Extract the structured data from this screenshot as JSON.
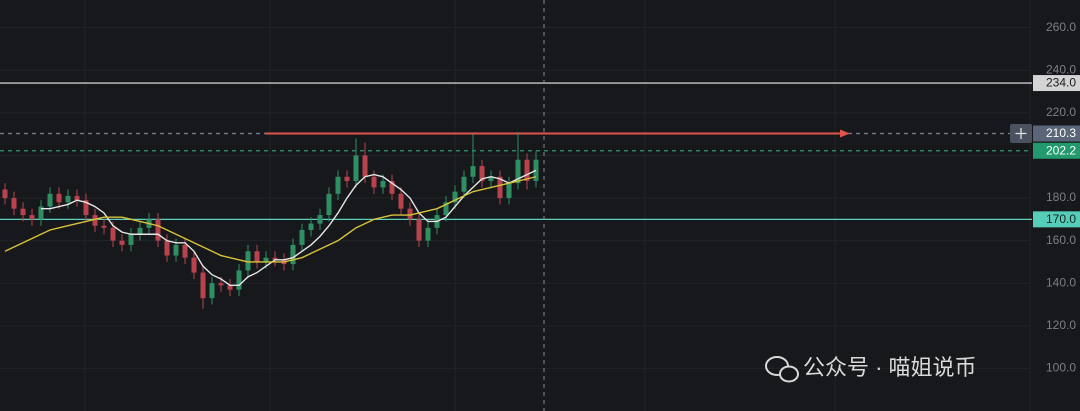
{
  "chart_data": {
    "type": "candlestick",
    "up_color": "#2f8f62",
    "down_color": "#b8434c",
    "open": [
      184,
      180,
      175,
      172,
      170,
      176,
      182,
      178,
      181,
      179,
      172,
      167,
      166,
      160,
      158,
      163,
      166,
      170,
      160,
      153,
      158,
      152,
      145,
      133,
      140,
      139,
      137,
      146,
      155,
      150,
      152,
      151,
      149,
      158,
      165,
      168,
      172,
      182,
      190,
      188,
      200,
      190,
      185,
      188,
      182,
      175,
      170,
      160,
      166,
      172,
      178,
      183,
      190,
      195,
      188,
      190,
      180,
      187,
      198,
      188
    ],
    "high": [
      187,
      183,
      178,
      175,
      179,
      185,
      185,
      184,
      184,
      182,
      175,
      170,
      169,
      163,
      166,
      169,
      173,
      173,
      163,
      161,
      161,
      155,
      148,
      143,
      143,
      142,
      149,
      158,
      158,
      155,
      155,
      154,
      161,
      168,
      171,
      175,
      185,
      193,
      193,
      208,
      206,
      193,
      191,
      191,
      185,
      178,
      173,
      169,
      175,
      181,
      186,
      193,
      210,
      198,
      193,
      193,
      190,
      211,
      201,
      202
    ],
    "low": [
      177,
      172,
      169,
      167,
      167,
      173,
      175,
      175,
      176,
      169,
      164,
      163,
      157,
      155,
      155,
      160,
      163,
      157,
      150,
      150,
      149,
      142,
      128,
      130,
      136,
      134,
      134,
      143,
      147,
      147,
      148,
      146,
      146,
      155,
      162,
      165,
      169,
      179,
      185,
      185,
      187,
      182,
      182,
      179,
      172,
      167,
      157,
      157,
      163,
      169,
      175,
      180,
      187,
      185,
      185,
      177,
      177,
      184,
      184,
      185
    ],
    "close": [
      180,
      175,
      172,
      170,
      176,
      182,
      178,
      181,
      179,
      172,
      167,
      166,
      160,
      158,
      163,
      166,
      170,
      160,
      153,
      158,
      152,
      145,
      133,
      140,
      139,
      137,
      146,
      155,
      150,
      152,
      151,
      149,
      158,
      165,
      168,
      172,
      182,
      190,
      188,
      200,
      190,
      185,
      188,
      182,
      175,
      170,
      160,
      166,
      172,
      178,
      183,
      190,
      195,
      188,
      190,
      180,
      187,
      198,
      188,
      198
    ],
    "ma": [
      {
        "color": "#e6e6e6",
        "values": [
          null,
          null,
          null,
          null,
          175,
          175,
          176,
          177,
          179,
          178,
          176,
          173,
          167,
          164,
          163,
          163,
          163,
          163,
          160,
          159,
          159,
          155,
          148,
          144,
          142,
          139,
          139,
          143,
          145,
          148,
          151,
          151,
          152,
          155,
          158,
          162,
          167,
          173,
          180,
          186,
          190,
          191,
          190,
          187,
          184,
          180,
          173,
          169,
          169,
          171,
          176,
          181,
          185,
          189,
          190,
          189,
          187,
          189,
          191,
          193
        ]
      },
      {
        "color": "#d8c23a",
        "values": [
          155,
          157,
          159,
          161,
          163,
          165,
          166,
          167,
          168,
          169,
          170,
          171,
          171,
          171,
          170,
          169,
          168,
          167,
          165,
          163,
          161,
          159,
          157,
          155,
          153,
          152,
          151,
          150,
          150,
          150,
          150,
          150,
          151,
          152,
          154,
          156,
          158,
          160,
          163,
          166,
          168,
          170,
          171,
          172,
          172,
          172,
          173,
          174,
          175,
          177,
          179,
          181,
          183,
          184,
          185,
          186,
          187,
          188,
          189,
          190
        ]
      }
    ],
    "ylim": [
      80,
      273
    ],
    "yticks": [
      {
        "value": 100,
        "label": "100.0"
      },
      {
        "value": 120,
        "label": "120.0"
      },
      {
        "value": 140,
        "label": "140.0"
      },
      {
        "value": 160,
        "label": "160.0"
      },
      {
        "value": 180,
        "label": "180.0"
      },
      {
        "value": 200,
        "label": "200.0"
      },
      {
        "value": 220,
        "label": "220.0"
      },
      {
        "value": 240,
        "label": "240.0"
      },
      {
        "value": 260,
        "label": "260.0"
      }
    ],
    "grid": true,
    "hlines": [
      {
        "value": 234,
        "label": "234.0",
        "color": "#c8c8c8",
        "dash": false,
        "label_bg": "#d4d4d4",
        "label_color": "#1a1a1a"
      },
      {
        "value": 210.3,
        "label": "210.3",
        "color": "#7a8595",
        "dash": true,
        "label_bg": "#5b6678",
        "label_color": "#ffffff",
        "arrow_color": "#e0544c"
      },
      {
        "value": 202.2,
        "label": "202.2",
        "color": "#2a9a70",
        "dash": true,
        "label_bg": "#229a6e",
        "label_color": "#ffffff"
      },
      {
        "value": 170,
        "label": "170.0",
        "color": "#5ccfbb",
        "dash": false,
        "label_bg": "#56cdb8",
        "label_color": "#10241f"
      }
    ]
  },
  "watermark": "公众号 · 喵姐说币"
}
